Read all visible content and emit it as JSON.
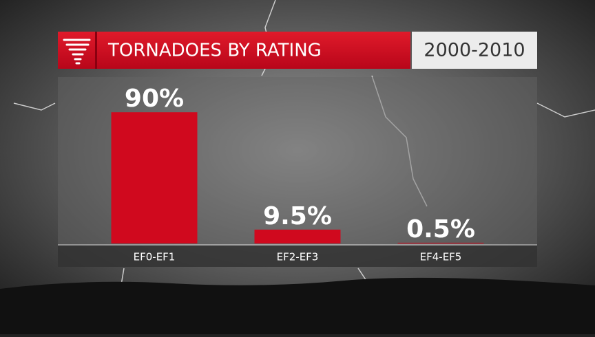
{
  "chart_data": {
    "type": "bar",
    "title": "TORNADOES BY RATING",
    "subtitle": "2000-2010",
    "categories": [
      "EF0-EF1",
      "EF2-EF3",
      "EF4-EF5"
    ],
    "values": [
      90,
      9.5,
      0.5
    ],
    "value_labels": [
      "90%",
      "9.5%",
      "0.5%"
    ],
    "color": "#d0091e"
  }
}
